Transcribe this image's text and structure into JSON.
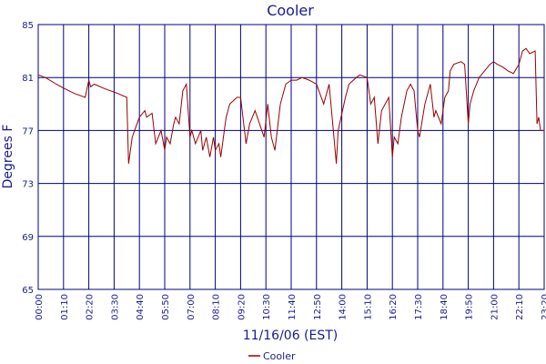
{
  "chart_data": {
    "type": "line",
    "title": "Cooler",
    "xlabel": "11/16/06 (EST)",
    "ylabel": "Degrees F",
    "ylim": [
      65,
      85
    ],
    "yticks": [
      65,
      69,
      73,
      77,
      81,
      85
    ],
    "xlim_minutes": [
      0,
      1400
    ],
    "xtick_labels": [
      "00:00",
      "01:10",
      "02:20",
      "03:30",
      "04:40",
      "05:50",
      "07:00",
      "08:10",
      "09:20",
      "10:30",
      "11:40",
      "12:50",
      "14:00",
      "15:10",
      "16:20",
      "17:30",
      "18:40",
      "19:50",
      "21:00",
      "22:10",
      "23:20"
    ],
    "grid": true,
    "legend": "bottom-center",
    "colors": {
      "series": "#990000",
      "grid": "#000080",
      "text": "#1a1a8c"
    },
    "series": [
      {
        "name": "Cooler",
        "x": [
          "00:00",
          "00:20",
          "00:50",
          "01:10",
          "01:40",
          "02:10",
          "02:20",
          "02:25",
          "02:35",
          "03:00",
          "03:20",
          "03:40",
          "04:05",
          "04:10",
          "04:20",
          "04:40",
          "04:55",
          "05:00",
          "05:15",
          "05:25",
          "05:40",
          "05:50",
          "05:55",
          "06:05",
          "06:15",
          "06:20",
          "06:30",
          "06:40",
          "06:50",
          "07:00",
          "07:05",
          "07:15",
          "07:30",
          "07:35",
          "07:45",
          "07:55",
          "08:05",
          "08:10",
          "08:20",
          "08:25",
          "08:35",
          "08:40",
          "08:50",
          "09:10",
          "09:20",
          "09:35",
          "09:45",
          "10:00",
          "10:25",
          "10:35",
          "10:45",
          "10:55",
          "11:10",
          "11:25",
          "11:40",
          "11:55",
          "12:10",
          "12:30",
          "12:50",
          "13:10",
          "13:25",
          "13:45",
          "13:50",
          "14:10",
          "14:20",
          "14:40",
          "14:50",
          "15:10",
          "15:20",
          "15:30",
          "15:40",
          "15:50",
          "16:00",
          "16:10",
          "16:20",
          "16:25",
          "16:35",
          "16:45",
          "17:00",
          "17:10",
          "17:20",
          "17:30",
          "17:35",
          "17:50",
          "18:05",
          "18:15",
          "18:20",
          "18:35",
          "18:45",
          "18:55",
          "19:00",
          "19:10",
          "19:30",
          "19:40",
          "19:50",
          "19:55",
          "20:05",
          "20:20",
          "20:35",
          "20:50",
          "21:00",
          "21:10",
          "21:25",
          "21:40",
          "21:55",
          "22:10",
          "22:20",
          "22:30",
          "22:40",
          "22:55",
          "23:00",
          "23:05",
          "23:10",
          "23:20"
        ],
        "y": [
          81.2,
          81.0,
          80.5,
          80.2,
          79.8,
          79.5,
          80.8,
          80.3,
          80.5,
          80.2,
          80.0,
          79.8,
          79.5,
          74.5,
          76.5,
          78.0,
          78.5,
          78.0,
          78.3,
          76.0,
          77.0,
          75.5,
          76.5,
          76.0,
          77.5,
          78.0,
          77.5,
          80.0,
          80.5,
          76.5,
          77.0,
          76.0,
          77.0,
          75.5,
          76.5,
          75.0,
          76.5,
          75.5,
          76.0,
          75.0,
          77.0,
          78.0,
          79.0,
          79.5,
          79.5,
          76.0,
          77.5,
          78.5,
          76.5,
          79.0,
          76.5,
          75.5,
          79.0,
          80.5,
          80.8,
          80.8,
          81.0,
          80.8,
          80.5,
          79.0,
          80.5,
          74.5,
          77.0,
          79.5,
          80.5,
          81.0,
          81.2,
          81.0,
          79.0,
          79.5,
          76.0,
          78.5,
          79.0,
          79.5,
          75.0,
          76.5,
          76.0,
          78.0,
          80.0,
          80.5,
          80.0,
          77.0,
          76.5,
          79.0,
          80.5,
          78.0,
          78.5,
          77.5,
          79.5,
          80.0,
          81.5,
          82.0,
          82.2,
          82.0,
          77.5,
          79.0,
          80.0,
          81.0,
          81.5,
          82.0,
          82.2,
          82.0,
          81.8,
          81.5,
          81.3,
          82.0,
          83.0,
          83.2,
          82.8,
          83.0,
          77.5,
          78.0,
          77.0,
          77.0
        ]
      }
    ]
  }
}
